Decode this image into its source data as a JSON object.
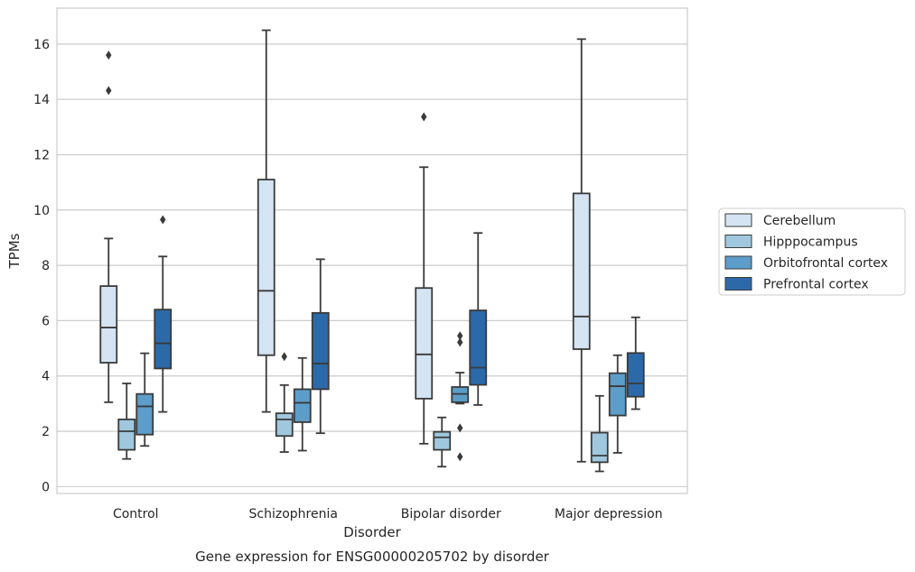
{
  "chart_data": {
    "type": "box",
    "title": "Gene expression for ENSG00000205702 by disorder",
    "xlabel": "Disorder",
    "ylabel": "TPMs",
    "ylim": [
      -0.25,
      17.3
    ],
    "yticks": [
      0,
      2,
      4,
      6,
      8,
      10,
      12,
      14,
      16
    ],
    "grid": true,
    "legend_position": "right",
    "categories": [
      "Control",
      "Schizophrenia",
      "Bipolar disorder",
      "Major depression"
    ],
    "series": [
      {
        "name": "Cerebellum",
        "color": "#d4e4f3",
        "boxes": [
          {
            "whislo": 3.05,
            "q1": 4.48,
            "med": 5.75,
            "q3": 7.25,
            "whishi": 8.97,
            "fliers": [
              14.32,
              15.6
            ]
          },
          {
            "whislo": 2.7,
            "q1": 4.75,
            "med": 7.08,
            "q3": 11.1,
            "whishi": 16.5,
            "fliers": []
          },
          {
            "whislo": 1.55,
            "q1": 3.18,
            "med": 4.78,
            "q3": 7.18,
            "whishi": 11.55,
            "fliers": [
              13.37
            ]
          },
          {
            "whislo": 0.9,
            "q1": 4.97,
            "med": 6.15,
            "q3": 10.6,
            "whishi": 16.18,
            "fliers": []
          }
        ]
      },
      {
        "name": "Hipppocampus",
        "color": "#9fc8df",
        "boxes": [
          {
            "whislo": 1.0,
            "q1": 1.33,
            "med": 2.0,
            "q3": 2.43,
            "whishi": 3.73,
            "fliers": []
          },
          {
            "whislo": 1.25,
            "q1": 1.83,
            "med": 2.43,
            "q3": 2.65,
            "whishi": 3.67,
            "fliers": [
              4.7
            ]
          },
          {
            "whislo": 0.72,
            "q1": 1.33,
            "med": 1.78,
            "q3": 1.98,
            "whishi": 2.5,
            "fliers": []
          },
          {
            "whislo": 0.55,
            "q1": 0.88,
            "med": 1.12,
            "q3": 1.95,
            "whishi": 3.28,
            "fliers": []
          }
        ]
      },
      {
        "name": "Orbitofrontal cortex",
        "color": "#5c9dc9",
        "boxes": [
          {
            "whislo": 1.47,
            "q1": 1.88,
            "med": 2.9,
            "q3": 3.35,
            "whishi": 4.82,
            "fliers": []
          },
          {
            "whislo": 1.3,
            "q1": 2.33,
            "med": 3.03,
            "q3": 3.52,
            "whishi": 4.65,
            "fliers": []
          },
          {
            "whislo": 3.0,
            "q1": 3.05,
            "med": 3.35,
            "q3": 3.6,
            "whishi": 4.12,
            "fliers": [
              1.08,
              2.12,
              5.22,
              5.45
            ]
          },
          {
            "whislo": 1.22,
            "q1": 2.57,
            "med": 3.63,
            "q3": 4.1,
            "whishi": 4.75,
            "fliers": []
          }
        ]
      },
      {
        "name": "Prefrontal cortex",
        "color": "#2c69a9",
        "boxes": [
          {
            "whislo": 2.7,
            "q1": 4.27,
            "med": 5.18,
            "q3": 6.4,
            "whishi": 8.32,
            "fliers": [
              9.65
            ]
          },
          {
            "whislo": 1.93,
            "q1": 3.52,
            "med": 4.45,
            "q3": 6.28,
            "whishi": 8.22,
            "fliers": []
          },
          {
            "whislo": 2.95,
            "q1": 3.68,
            "med": 4.3,
            "q3": 6.37,
            "whishi": 9.17,
            "fliers": []
          },
          {
            "whislo": 2.8,
            "q1": 3.25,
            "med": 3.73,
            "q3": 4.83,
            "whishi": 6.12,
            "fliers": []
          }
        ]
      }
    ]
  }
}
